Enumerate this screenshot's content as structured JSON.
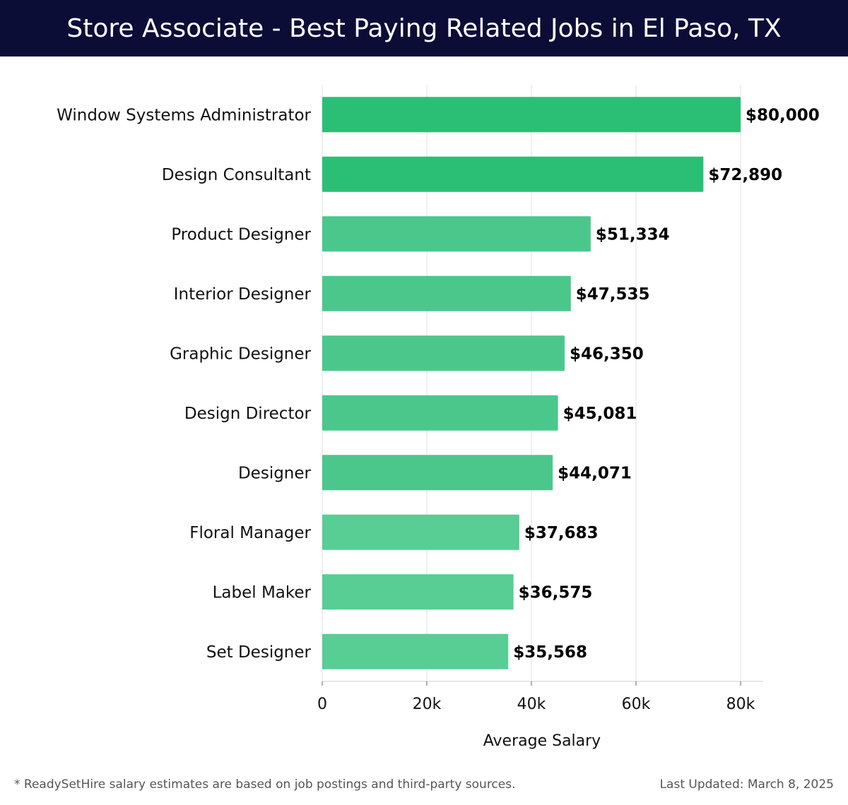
{
  "header": {
    "title": "Store Associate - Best Paying Related Jobs in El Paso, TX"
  },
  "chart_data": {
    "type": "bar",
    "orientation": "horizontal",
    "categories": [
      "Window Systems Administrator",
      "Design Consultant",
      "Product Designer",
      "Interior Designer",
      "Graphic Designer",
      "Design Director",
      "Designer",
      "Floral Manager",
      "Label Maker",
      "Set Designer"
    ],
    "values": [
      80000,
      72890,
      51334,
      47535,
      46350,
      45081,
      44071,
      37683,
      36575,
      35568
    ],
    "value_labels": [
      "$80,000",
      "$72,890",
      "$51,334",
      "$47,535",
      "$46,350",
      "$45,081",
      "$44,071",
      "$37,683",
      "$36,575",
      "$35,568"
    ],
    "xlabel": "Average Salary",
    "ylabel": "",
    "xlim": [
      0,
      84000
    ],
    "xticks": [
      0,
      20000,
      40000,
      60000,
      80000
    ],
    "xtick_labels": [
      "0",
      "20k",
      "40k",
      "60k",
      "80k"
    ],
    "grid": "vertical",
    "colors": {
      "top": "#2bbf76",
      "rest": "#4cc78c",
      "low": "#58cd94",
      "grid": "#e2e2e2",
      "axis": "#cccccc"
    }
  },
  "footer": {
    "note": "* ReadySetHire salary estimates are based on job postings and third-party sources.",
    "updated": "Last Updated: March 8, 2025"
  }
}
